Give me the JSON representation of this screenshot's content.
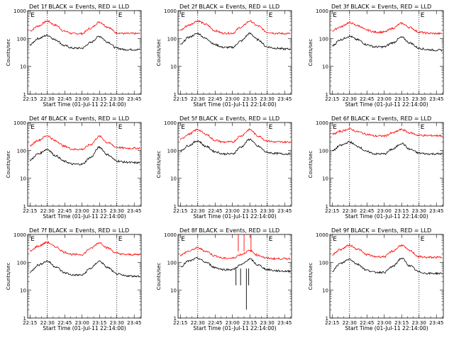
{
  "figure": {
    "background": "#ffffff",
    "series_colors": {
      "events": "#000000",
      "lld": "#ff0000"
    },
    "panel_marker": "E"
  },
  "chart_data": [
    {
      "type": "line",
      "title": "Det 1f BLACK = Events, RED = LLD",
      "xlabel": "Start Time (01-Jul-11 22:14:00)",
      "ylabel": "Counts/sec",
      "yscale": "log",
      "ylim": [
        1,
        1000
      ],
      "yticks": [
        "1",
        "10",
        "100",
        "1000"
      ],
      "xlim_minutes": [
        -1,
        97
      ],
      "xticks": [
        "22:15",
        "22:30",
        "22:45",
        "23:00",
        "23:15",
        "23:30",
        "23:45"
      ],
      "vlines": [
        "22:30",
        "23:30"
      ],
      "x": [
        "22:15",
        "22:22",
        "22:30",
        "22:37",
        "22:45",
        "22:52",
        "23:00",
        "23:07",
        "23:15",
        "23:22",
        "23:30",
        "23:37",
        "23:45",
        "23:50"
      ],
      "series": [
        {
          "color": "#ff0000",
          "values": [
            190,
            280,
            420,
            300,
            180,
            150,
            150,
            230,
            390,
            260,
            160,
            150,
            150,
            150
          ]
        },
        {
          "color": "#000000",
          "values": [
            60,
            100,
            130,
            90,
            55,
            45,
            45,
            70,
            120,
            75,
            45,
            40,
            40,
            40
          ]
        }
      ]
    },
    {
      "type": "line",
      "title": "Det 2f BLACK = Events, RED = LLD",
      "xlabel": "Start Time (01-Jul-11 22:14:00)",
      "ylabel": "Counts/sec",
      "yscale": "log",
      "ylim": [
        1,
        1000
      ],
      "yticks": [
        "1",
        "10",
        "100",
        "1000"
      ],
      "xlim_minutes": [
        -1,
        97
      ],
      "xticks": [
        "22:15",
        "22:30",
        "22:45",
        "23:00",
        "23:15",
        "23:30",
        "23:45"
      ],
      "vlines": [
        "22:30",
        "23:30"
      ],
      "x": [
        "22:15",
        "22:22",
        "22:30",
        "22:37",
        "22:45",
        "22:52",
        "23:00",
        "23:07",
        "23:15",
        "23:22",
        "23:30",
        "23:37",
        "23:45",
        "23:50"
      ],
      "series": [
        {
          "color": "#ff0000",
          "values": [
            200,
            300,
            430,
            320,
            190,
            155,
            155,
            250,
            420,
            280,
            170,
            155,
            150,
            150
          ]
        },
        {
          "color": "#000000",
          "values": [
            60,
            110,
            150,
            100,
            60,
            48,
            48,
            80,
            150,
            90,
            50,
            45,
            42,
            42
          ]
        }
      ]
    },
    {
      "type": "line",
      "title": "Det 3f BLACK = Events, RED = LLD",
      "xlabel": "Start Time (01-Jul-11 22:14:00)",
      "ylabel": "Counts/sec",
      "yscale": "log",
      "ylim": [
        1,
        1000
      ],
      "yticks": [
        "1",
        "10",
        "100",
        "1000"
      ],
      "xlim_minutes": [
        -1,
        97
      ],
      "xticks": [
        "22:15",
        "22:30",
        "22:45",
        "23:00",
        "23:15",
        "23:30",
        "23:45"
      ],
      "vlines": [
        "22:30",
        "23:30"
      ],
      "x": [
        "22:15",
        "22:22",
        "22:30",
        "22:37",
        "22:45",
        "22:52",
        "23:00",
        "23:07",
        "23:15",
        "23:22",
        "23:30",
        "23:37",
        "23:45",
        "23:50"
      ],
      "series": [
        {
          "color": "#ff0000",
          "values": [
            190,
            260,
            370,
            290,
            200,
            170,
            170,
            230,
            350,
            250,
            170,
            155,
            150,
            150
          ]
        },
        {
          "color": "#000000",
          "values": [
            55,
            90,
            120,
            90,
            60,
            50,
            50,
            70,
            110,
            70,
            45,
            40,
            38,
            38
          ]
        }
      ]
    },
    {
      "type": "line",
      "title": "Det 4f BLACK = Events, RED = LLD",
      "xlabel": "Start Time (01-Jul-11 22:14:00)",
      "ylabel": "Counts/sec",
      "yscale": "log",
      "ylim": [
        1,
        1000
      ],
      "yticks": [
        "1",
        "10",
        "100",
        "1000"
      ],
      "xlim_minutes": [
        -1,
        97
      ],
      "xticks": [
        "22:15",
        "22:30",
        "22:45",
        "23:00",
        "23:15",
        "23:30",
        "23:45"
      ],
      "vlines": [
        "22:30",
        "23:30"
      ],
      "x": [
        "22:15",
        "22:22",
        "22:30",
        "22:37",
        "22:45",
        "22:52",
        "23:00",
        "23:07",
        "23:15",
        "23:22",
        "23:30",
        "23:37",
        "23:45",
        "23:50"
      ],
      "series": [
        {
          "color": "#ff0000",
          "values": [
            150,
            230,
            340,
            220,
            140,
            110,
            110,
            160,
            320,
            190,
            130,
            120,
            120,
            120
          ]
        },
        {
          "color": "#000000",
          "values": [
            45,
            75,
            110,
            65,
            40,
            32,
            32,
            55,
            130,
            70,
            42,
            38,
            36,
            36
          ]
        }
      ]
    },
    {
      "type": "line",
      "title": "Det 5f BLACK = Events, RED = LLD",
      "xlabel": "Start Time (01-Jul-11 22:14:00)",
      "ylabel": "Counts/sec",
      "yscale": "log",
      "ylim": [
        1,
        1000
      ],
      "yticks": [
        "1",
        "10",
        "100",
        "1000"
      ],
      "xlim_minutes": [
        -1,
        97
      ],
      "xticks": [
        "22:15",
        "22:30",
        "22:45",
        "23:00",
        "23:15",
        "23:30",
        "23:45"
      ],
      "vlines": [
        "22:30",
        "23:30"
      ],
      "x": [
        "22:15",
        "22:22",
        "22:30",
        "22:37",
        "22:45",
        "22:52",
        "23:00",
        "23:07",
        "23:15",
        "23:22",
        "23:30",
        "23:37",
        "23:45",
        "23:50"
      ],
      "series": [
        {
          "color": "#ff0000",
          "values": [
            250,
            380,
            560,
            380,
            230,
            200,
            200,
            330,
            560,
            330,
            220,
            200,
            200,
            200
          ]
        },
        {
          "color": "#000000",
          "values": [
            95,
            150,
            220,
            140,
            90,
            75,
            75,
            130,
            250,
            140,
            85,
            78,
            75,
            75
          ]
        }
      ]
    },
    {
      "type": "line",
      "title": "Det 6f BLACK = Events, RED = LLD",
      "xlabel": "Start Time (01-Jul-11 22:14:00)",
      "ylabel": "Counts/sec",
      "yscale": "log",
      "ylim": [
        1,
        1000
      ],
      "yticks": [
        "1",
        "10",
        "100",
        "1000"
      ],
      "xlim_minutes": [
        -1,
        97
      ],
      "xticks": [
        "22:15",
        "22:30",
        "22:45",
        "23:00",
        "23:15",
        "23:30",
        "23:45"
      ],
      "vlines": [
        "22:30",
        "23:30"
      ],
      "x": [
        "22:15",
        "22:22",
        "22:30",
        "22:37",
        "22:45",
        "22:52",
        "23:00",
        "23:07",
        "23:15",
        "23:22",
        "23:30",
        "23:37",
        "23:45",
        "23:50"
      ],
      "series": [
        {
          "color": "#ff0000",
          "values": [
            380,
            480,
            590,
            470,
            380,
            330,
            330,
            420,
            560,
            430,
            350,
            340,
            340,
            340
          ]
        },
        {
          "color": "#000000",
          "values": [
            95,
            150,
            200,
            140,
            90,
            75,
            75,
            110,
            180,
            110,
            80,
            75,
            75,
            75
          ]
        }
      ]
    },
    {
      "type": "line",
      "title": "Det 7f BLACK = Events, RED = LLD",
      "xlabel": "Start Time (01-Jul-11 22:14:00)",
      "ylabel": "Counts/sec",
      "yscale": "log",
      "ylim": [
        1,
        1000
      ],
      "yticks": [
        "1",
        "10",
        "100",
        "1000"
      ],
      "xlim_minutes": [
        -1,
        97
      ],
      "xticks": [
        "22:15",
        "22:30",
        "22:45",
        "23:00",
        "23:15",
        "23:30",
        "23:45"
      ],
      "vlines": [
        "22:30",
        "23:30"
      ],
      "x": [
        "22:15",
        "22:22",
        "22:30",
        "22:37",
        "22:45",
        "22:52",
        "23:00",
        "23:07",
        "23:15",
        "23:22",
        "23:30",
        "23:37",
        "23:45",
        "23:50"
      ],
      "series": [
        {
          "color": "#ff0000",
          "values": [
            250,
            380,
            520,
            360,
            230,
            190,
            190,
            310,
            510,
            330,
            210,
            190,
            190,
            190
          ]
        },
        {
          "color": "#000000",
          "values": [
            45,
            80,
            110,
            70,
            42,
            35,
            35,
            60,
            110,
            65,
            38,
            33,
            32,
            32
          ]
        }
      ]
    },
    {
      "type": "line",
      "title": "Det 8f BLACK = Events, RED = LLD",
      "xlabel": "Start Time (01-Jul-11 22:14:00)",
      "ylabel": "Counts/sec",
      "yscale": "log",
      "ylim": [
        1,
        1000
      ],
      "yticks": [
        "1",
        "10",
        "100",
        "1000"
      ],
      "xlim_minutes": [
        -1,
        97
      ],
      "xticks": [
        "22:15",
        "22:30",
        "22:45",
        "23:00",
        "23:15",
        "23:30",
        "23:45"
      ],
      "vlines": [
        "22:30",
        "23:30"
      ],
      "x": [
        "22:15",
        "22:22",
        "22:30",
        "22:37",
        "22:45",
        "22:52",
        "23:00",
        "23:07",
        "23:15",
        "23:22",
        "23:30",
        "23:37",
        "23:45",
        "23:50"
      ],
      "series": [
        {
          "color": "#ff0000",
          "values": [
            180,
            250,
            330,
            250,
            170,
            140,
            140,
            190,
            260,
            180,
            140,
            135,
            135,
            135
          ]
        },
        {
          "color": "#000000",
          "values": [
            70,
            110,
            140,
            100,
            65,
            55,
            55,
            80,
            130,
            80,
            55,
            50,
            48,
            48
          ]
        }
      ],
      "annotations": [
        {
          "x_minutes": 51,
          "note": "red spike",
          "y_top": 1000
        },
        {
          "x_minutes": 56,
          "note": "red spike",
          "y_top": 1000
        },
        {
          "x_minutes": 62,
          "note": "red spike",
          "y_top": 1000
        },
        {
          "x_minutes": 49,
          "note": "black dip",
          "y_bottom": 15
        },
        {
          "x_minutes": 53,
          "note": "black dip",
          "y_bottom": 15
        },
        {
          "x_minutes": 58,
          "note": "black dip",
          "y_bottom": 2
        },
        {
          "x_minutes": 60,
          "note": "black dip",
          "y_bottom": 15
        }
      ]
    },
    {
      "type": "line",
      "title": "Det 9f BLACK = Events, RED = LLD",
      "xlabel": "Start Time (01-Jul-11 22:14:00)",
      "ylabel": "Counts/sec",
      "yscale": "log",
      "ylim": [
        1,
        1000
      ],
      "yticks": [
        "1",
        "10",
        "100",
        "1000"
      ],
      "xlim_minutes": [
        -1,
        97
      ],
      "xticks": [
        "22:15",
        "22:30",
        "22:45",
        "23:00",
        "23:15",
        "23:30",
        "23:45"
      ],
      "vlines": [
        "22:30",
        "23:30"
      ],
      "x": [
        "22:15",
        "22:22",
        "22:30",
        "22:37",
        "22:45",
        "22:52",
        "23:00",
        "23:07",
        "23:15",
        "23:22",
        "23:30",
        "23:37",
        "23:45",
        "23:50"
      ],
      "series": [
        {
          "color": "#ff0000",
          "values": [
            190,
            290,
            410,
            300,
            190,
            160,
            160,
            250,
            410,
            260,
            160,
            150,
            150,
            150
          ]
        },
        {
          "color": "#000000",
          "values": [
            50,
            90,
            130,
            85,
            52,
            44,
            44,
            70,
            140,
            75,
            45,
            40,
            40,
            40
          ]
        }
      ]
    }
  ]
}
